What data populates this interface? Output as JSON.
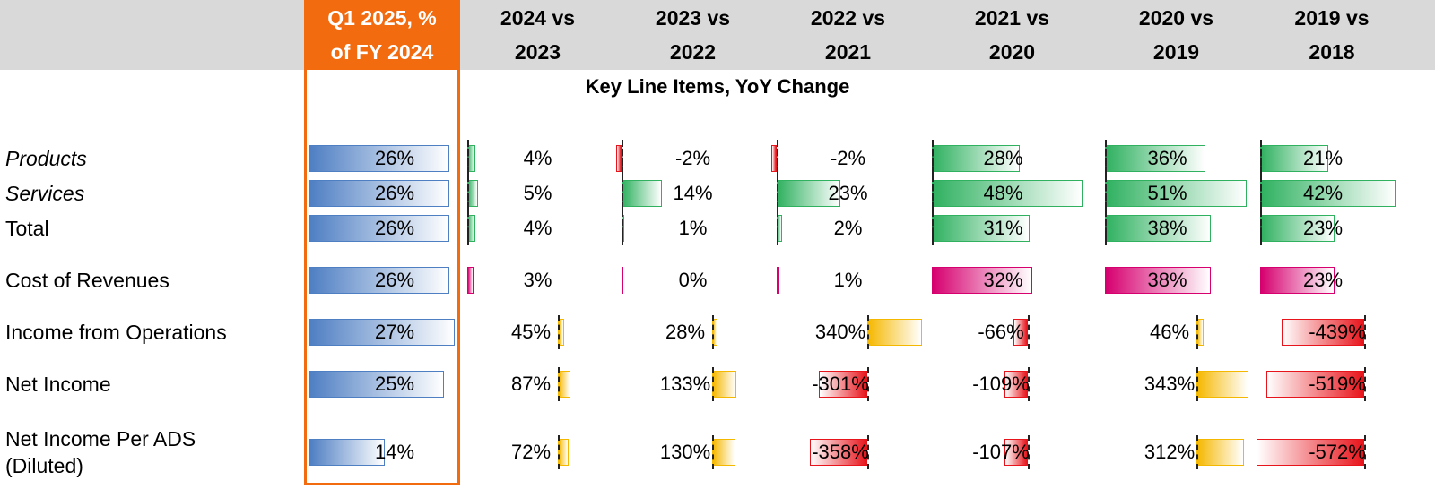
{
  "title": "Key Line Items, YoY Change",
  "headers": [
    "Q1 2025, % of FY 2024",
    "2024 vs 2023",
    "2023 vs 2022",
    "2022 vs 2021",
    "2021 vs 2020",
    "2020 vs 2019",
    "2019 vs 2018"
  ],
  "header_lines": [
    [
      "Q1 2025, %",
      "of FY 2024"
    ],
    [
      "2024 vs",
      "2023"
    ],
    [
      "2023 vs",
      "2022"
    ],
    [
      "2022 vs",
      "2021"
    ],
    [
      "2021 vs",
      "2020"
    ],
    [
      "2020 vs",
      "2019"
    ],
    [
      "2019 vs",
      "2018"
    ]
  ],
  "colors": {
    "q1_header": "#f26b0f",
    "q1_bar": "#4f7fc3",
    "revenue_bar": "#2fb160",
    "cost_bar": "#d6006f",
    "positive_bar": "#f5b800",
    "negative_bar": "#e8141b",
    "header_band": "#d9d9d9"
  },
  "chart_data": {
    "type": "table",
    "title": "Key Line Items, YoY Change",
    "columns": [
      "Q1 2025, % of FY 2024",
      "2024 vs 2023",
      "2023 vs 2022",
      "2022 vs 2021",
      "2021 vs 2020",
      "2020 vs 2019",
      "2019 vs 2018"
    ],
    "rows": [
      {
        "label": "Products",
        "italic": true,
        "values": [
          26,
          4,
          -2,
          -2,
          28,
          36,
          21
        ],
        "labels": [
          "26%",
          "4%",
          "-2%",
          "-2%",
          "28%",
          "36%",
          "21%"
        ]
      },
      {
        "label": "Services",
        "italic": true,
        "values": [
          26,
          5,
          14,
          23,
          48,
          51,
          42
        ],
        "labels": [
          "26%",
          "5%",
          "14%",
          "23%",
          "48%",
          "51%",
          "42%"
        ]
      },
      {
        "label": "Total",
        "values": [
          26,
          4,
          1,
          2,
          31,
          38,
          23
        ],
        "labels": [
          "26%",
          "4%",
          "1%",
          "2%",
          "31%",
          "38%",
          "23%"
        ]
      },
      {
        "label": "Cost of Revenues",
        "values": [
          26,
          3,
          0,
          1,
          32,
          38,
          23
        ],
        "labels": [
          "26%",
          "3%",
          "0%",
          "1%",
          "32%",
          "38%",
          "23%"
        ]
      },
      {
        "label": "Income from Operations",
        "values": [
          27,
          45,
          28,
          340,
          -66,
          46,
          -439
        ],
        "labels": [
          "27%",
          "45%",
          "28%",
          "340%",
          "-66%",
          "46%",
          "-439%"
        ]
      },
      {
        "label": "Net Income",
        "values": [
          25,
          87,
          133,
          -301,
          -109,
          343,
          -519
        ],
        "labels": [
          "25%",
          "87%",
          "133%",
          "-301%",
          "-109%",
          "343%",
          "-519%"
        ]
      },
      {
        "label": "Net Income Per ADS (Diluted)",
        "label_lines": [
          "Net Income Per ADS",
          "(Diluted)"
        ],
        "values": [
          14,
          72,
          130,
          -358,
          -107,
          312,
          -572
        ],
        "labels": [
          "14%",
          "72%",
          "130%",
          "-358%",
          "-107%",
          "312%",
          "-572%"
        ]
      }
    ]
  }
}
